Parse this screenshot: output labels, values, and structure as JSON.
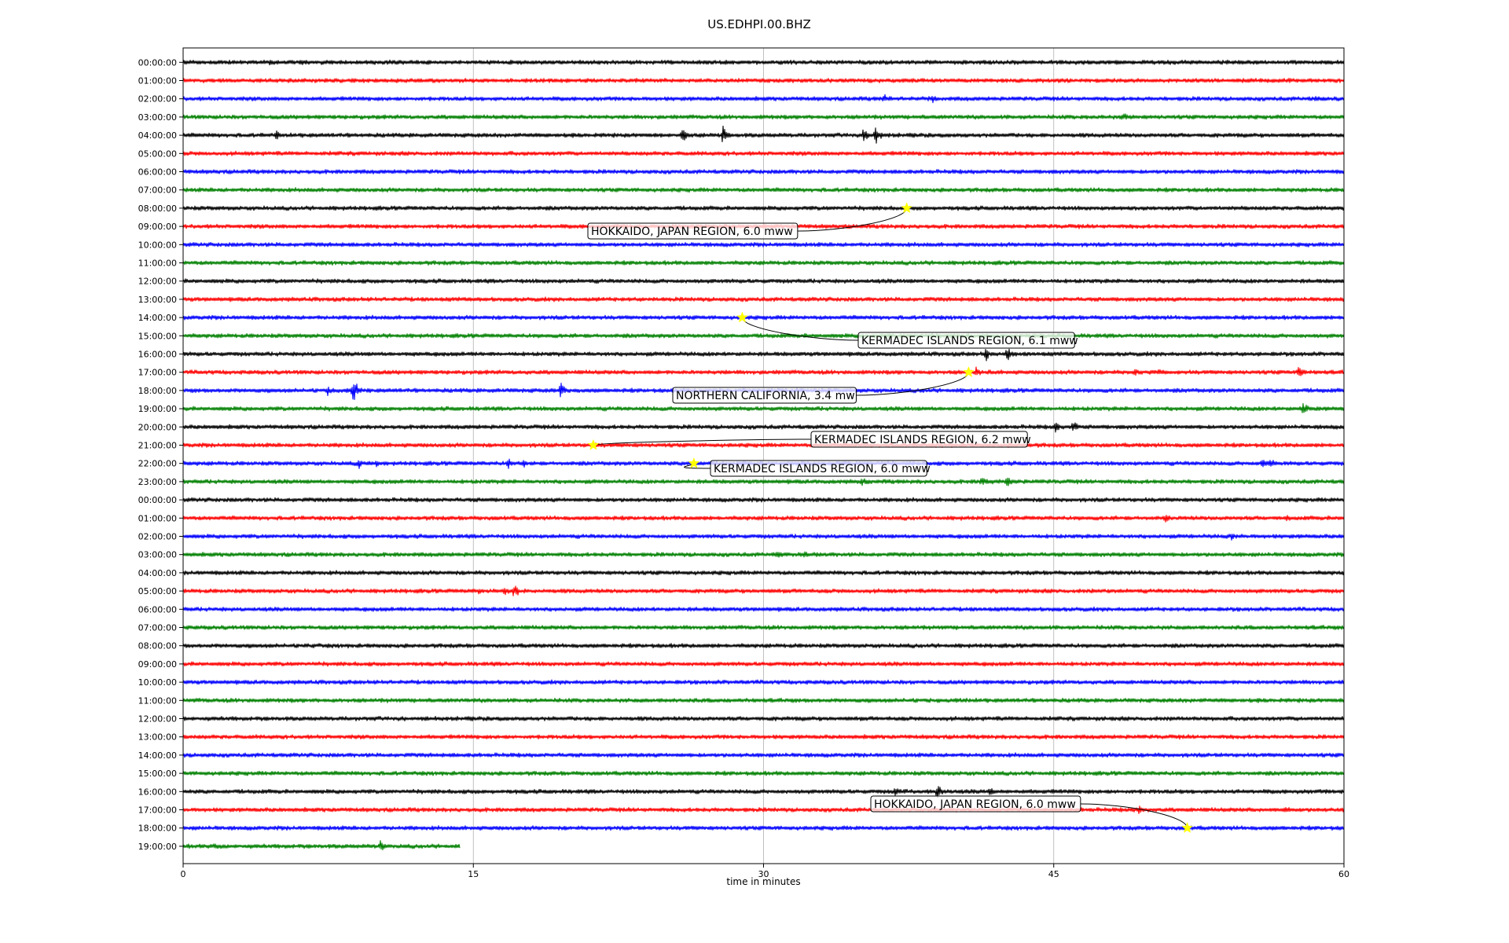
{
  "chart_data": {
    "type": "line",
    "title": "US.EDHPI.00.BHZ",
    "xlabel": "time in minutes",
    "ylabel": "",
    "xlim": [
      0,
      60
    ],
    "xticks": [
      0,
      15,
      30,
      45,
      60
    ],
    "grid_x": true,
    "grid_y": false,
    "legend": "none",
    "trace_colors": [
      "#000000",
      "#ff0000",
      "#0000ff",
      "#008000"
    ],
    "row_labels": [
      "00:00:00",
      "01:00:00",
      "02:00:00",
      "03:00:00",
      "04:00:00",
      "05:00:00",
      "06:00:00",
      "07:00:00",
      "08:00:00",
      "09:00:00",
      "10:00:00",
      "11:00:00",
      "12:00:00",
      "13:00:00",
      "14:00:00",
      "15:00:00",
      "16:00:00",
      "17:00:00",
      "18:00:00",
      "19:00:00",
      "20:00:00",
      "21:00:00",
      "22:00:00",
      "23:00:00",
      "00:00:00",
      "01:00:00",
      "02:00:00",
      "03:00:00",
      "04:00:00",
      "05:00:00",
      "06:00:00",
      "07:00:00",
      "08:00:00",
      "09:00:00",
      "10:00:00",
      "11:00:00",
      "12:00:00",
      "13:00:00",
      "14:00:00",
      "15:00:00",
      "16:00:00",
      "17:00:00",
      "18:00:00",
      "19:00:00"
    ],
    "last_row_end_minute": 14.3,
    "bursts": [
      {
        "row": 0,
        "minute": 4.5,
        "amp": 5
      },
      {
        "row": 0,
        "minute": 6.2,
        "amp": 6
      },
      {
        "row": 0,
        "minute": 7.2,
        "amp": 5
      },
      {
        "row": 2,
        "minute": 36.2,
        "amp": 8
      },
      {
        "row": 2,
        "minute": 38.7,
        "amp": 8
      },
      {
        "row": 2,
        "minute": 58.5,
        "amp": 5
      },
      {
        "row": 3,
        "minute": 48.6,
        "amp": 8
      },
      {
        "row": 4,
        "minute": 4.8,
        "amp": 8
      },
      {
        "row": 4,
        "minute": 25.8,
        "amp": 12
      },
      {
        "row": 4,
        "minute": 27.9,
        "amp": 14
      },
      {
        "row": 4,
        "minute": 35.2,
        "amp": 16
      },
      {
        "row": 4,
        "minute": 35.8,
        "amp": 14
      },
      {
        "row": 8,
        "minute": 48.5,
        "amp": 4
      },
      {
        "row": 13,
        "minute": 24.1,
        "amp": 4
      },
      {
        "row": 16,
        "minute": 41.5,
        "amp": 10
      },
      {
        "row": 16,
        "minute": 42.6,
        "amp": 14
      },
      {
        "row": 17,
        "minute": 41.0,
        "amp": 8
      },
      {
        "row": 17,
        "minute": 49.2,
        "amp": 9
      },
      {
        "row": 17,
        "minute": 50.5,
        "amp": 8
      },
      {
        "row": 17,
        "minute": 57.7,
        "amp": 12
      },
      {
        "row": 18,
        "minute": 7.5,
        "amp": 9
      },
      {
        "row": 18,
        "minute": 8.8,
        "amp": 20
      },
      {
        "row": 18,
        "minute": 19.5,
        "amp": 14
      },
      {
        "row": 19,
        "minute": 57.9,
        "amp": 12
      },
      {
        "row": 20,
        "minute": 45.1,
        "amp": 10
      },
      {
        "row": 20,
        "minute": 46.0,
        "amp": 12
      },
      {
        "row": 22,
        "minute": 9.1,
        "amp": 9
      },
      {
        "row": 22,
        "minute": 10.0,
        "amp": 9
      },
      {
        "row": 22,
        "minute": 16.8,
        "amp": 8
      },
      {
        "row": 22,
        "minute": 17.6,
        "amp": 9
      },
      {
        "row": 22,
        "minute": 55.8,
        "amp": 10
      },
      {
        "row": 22,
        "minute": 56.2,
        "amp": 8
      },
      {
        "row": 23,
        "minute": 35.1,
        "amp": 9
      },
      {
        "row": 23,
        "minute": 41.3,
        "amp": 10
      },
      {
        "row": 23,
        "minute": 42.6,
        "amp": 10
      },
      {
        "row": 25,
        "minute": 50.8,
        "amp": 7
      },
      {
        "row": 25,
        "minute": 57.0,
        "amp": 6
      },
      {
        "row": 26,
        "minute": 54.2,
        "amp": 6
      },
      {
        "row": 27,
        "minute": 30.7,
        "amp": 7
      },
      {
        "row": 27,
        "minute": 32.1,
        "amp": 7
      },
      {
        "row": 29,
        "minute": 15.3,
        "amp": 6
      },
      {
        "row": 29,
        "minute": 16.6,
        "amp": 9
      },
      {
        "row": 29,
        "minute": 17.1,
        "amp": 12
      },
      {
        "row": 29,
        "minute": 47.0,
        "amp": 4
      },
      {
        "row": 32,
        "minute": 6.3,
        "amp": 4
      },
      {
        "row": 40,
        "minute": 36.8,
        "amp": 10
      },
      {
        "row": 40,
        "minute": 39.0,
        "amp": 12
      },
      {
        "row": 40,
        "minute": 41.7,
        "amp": 8
      },
      {
        "row": 41,
        "minute": 49.4,
        "amp": 8
      },
      {
        "row": 41,
        "minute": 57.0,
        "amp": 8
      },
      {
        "row": 43,
        "minute": 1.6,
        "amp": 6
      },
      {
        "row": 43,
        "minute": 10.2,
        "amp": 10
      }
    ],
    "events": [
      {
        "label": "HOKKAIDO, JAPAN REGION, 6.0 mww",
        "row": 8,
        "minute": 37.4
      },
      {
        "label": "KERMADEC ISLANDS REGION, 6.1 mww",
        "row": 14,
        "minute": 28.9
      },
      {
        "label": "NORTHERN CALIFORNIA, 3.4 mw",
        "row": 17,
        "minute": 40.6
      },
      {
        "label": "KERMADEC ISLANDS REGION, 6.2 mww",
        "row": 21,
        "minute": 21.2
      },
      {
        "label": "KERMADEC ISLANDS REGION, 6.0 mww",
        "row": 22,
        "minute": 26.4
      },
      {
        "label": "HOKKAIDO, JAPAN REGION, 6.0 mww",
        "row": 42,
        "minute": 51.9
      }
    ]
  }
}
